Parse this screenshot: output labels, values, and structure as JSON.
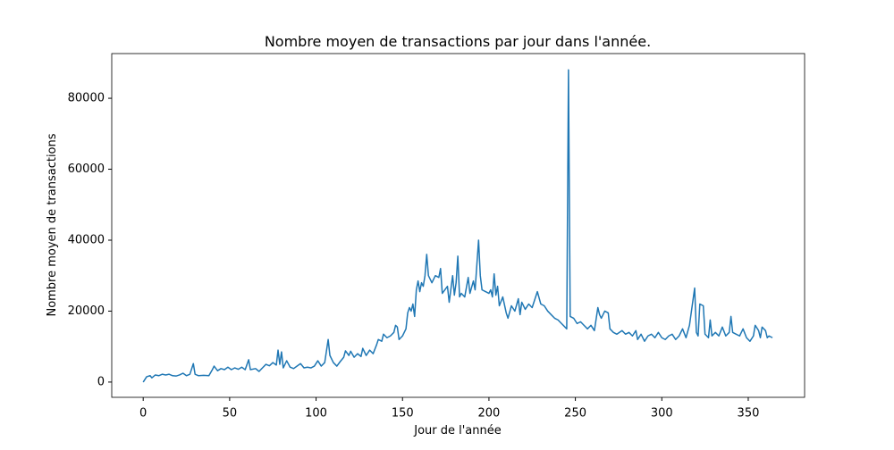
{
  "chart_data": {
    "type": "line",
    "title": "Nombre moyen de transactions par jour dans l'année.",
    "xlabel": "Jour de l'année",
    "ylabel": "Nombre moyen de transactions",
    "color": "#1f77b4",
    "xlim": [
      -18.2,
      382.6
    ],
    "ylim": [
      -4300,
      92600
    ],
    "xticks": [
      0,
      50,
      100,
      150,
      200,
      250,
      300,
      350
    ],
    "yticks": [
      0,
      20000,
      40000,
      60000,
      80000
    ],
    "x": [
      0,
      2,
      4,
      5,
      7,
      9,
      11,
      13,
      15,
      17,
      19,
      21,
      23,
      25,
      27,
      29,
      30,
      32,
      35,
      38,
      40,
      41,
      43,
      45,
      47,
      49,
      51,
      53,
      55,
      57,
      59,
      61,
      62,
      65,
      67,
      69,
      71,
      73,
      75,
      77,
      78,
      79,
      80,
      81,
      83,
      85,
      87,
      89,
      91,
      93,
      95,
      97,
      99,
      101,
      103,
      105,
      107,
      108,
      110,
      112,
      114,
      116,
      117,
      119,
      120,
      122,
      124,
      126,
      127,
      129,
      131,
      133,
      135,
      136,
      138,
      139,
      141,
      143,
      145,
      146,
      147,
      148,
      150,
      152,
      153,
      154,
      155,
      156,
      157,
      158,
      159,
      160,
      161,
      162,
      163,
      164,
      165,
      167,
      169,
      171,
      172,
      173,
      176,
      177,
      179,
      180,
      181,
      182,
      183,
      184,
      186,
      188,
      189,
      191,
      192,
      194,
      195,
      196,
      198,
      200,
      201,
      202,
      203,
      204,
      205,
      206,
      208,
      210,
      211,
      213,
      215,
      217,
      218,
      219,
      221,
      223,
      225,
      228,
      230,
      232,
      234,
      236,
      238,
      240,
      242,
      245,
      246,
      247,
      249,
      251,
      253,
      255,
      257,
      259,
      261,
      263,
      264,
      265,
      267,
      269,
      270,
      272,
      274,
      277,
      279,
      281,
      283,
      285,
      286,
      288,
      290,
      292,
      294,
      296,
      298,
      300,
      302,
      304,
      306,
      308,
      310,
      312,
      314,
      316,
      318,
      319,
      320,
      321,
      322,
      324,
      325,
      327,
      328,
      329,
      331,
      333,
      335,
      337,
      339,
      340,
      341,
      343,
      345,
      347,
      349,
      351,
      353,
      354,
      356,
      357,
      358,
      360,
      361,
      362,
      364
    ],
    "values": [
      0,
      1500,
      1800,
      1200,
      2000,
      1800,
      2200,
      2000,
      2200,
      1800,
      1700,
      2000,
      2500,
      1800,
      2200,
      5200,
      2200,
      1800,
      1900,
      1800,
      3500,
      4500,
      3200,
      3800,
      3500,
      4200,
      3500,
      4000,
      3600,
      4200,
      3500,
      6300,
      3500,
      3800,
      3000,
      4000,
      5000,
      4600,
      5500,
      4800,
      9000,
      5000,
      8500,
      4000,
      6000,
      4200,
      3800,
      4500,
      5200,
      4000,
      4200,
      4000,
      4500,
      6000,
      4500,
      5500,
      12000,
      7500,
      5500,
      4500,
      5800,
      7000,
      8800,
      7500,
      8700,
      7000,
      8000,
      7200,
      9500,
      7500,
      9000,
      8000,
      10500,
      12000,
      11500,
      13500,
      12500,
      13000,
      14000,
      16000,
      15500,
      12000,
      13000,
      15000,
      19500,
      21000,
      20000,
      22000,
      18500,
      26000,
      28500,
      25500,
      28000,
      27000,
      30000,
      36000,
      30000,
      28000,
      30000,
      29500,
      32000,
      25000,
      27000,
      22500,
      30000,
      24500,
      28000,
      35500,
      24000,
      25000,
      24000,
      29500,
      25000,
      28500,
      26000,
      40000,
      30000,
      26000,
      25500,
      25000,
      26000,
      24000,
      30500,
      24500,
      27000,
      21500,
      24000,
      19500,
      18000,
      21500,
      20000,
      23500,
      19000,
      22500,
      20500,
      22000,
      21000,
      25500,
      22000,
      21500,
      20000,
      19000,
      18000,
      17500,
      16500,
      15000,
      88000,
      18500,
      18000,
      16500,
      17000,
      16000,
      15000,
      16000,
      14500,
      21000,
      19000,
      18000,
      20000,
      19500,
      15000,
      14000,
      13500,
      14500,
      13500,
      14000,
      13000,
      14500,
      12000,
      13500,
      11500,
      13000,
      13500,
      12500,
      14000,
      12500,
      12000,
      13000,
      13500,
      12000,
      13000,
      15000,
      12500,
      16000,
      23000,
      26500,
      14000,
      13000,
      22000,
      21500,
      13500,
      12500,
      17500,
      13000,
      14000,
      13000,
      15500,
      13000,
      14000,
      18500,
      14000,
      13500,
      13000,
      15000,
      12500,
      11500,
      13000,
      16000,
      14500,
      12500,
      15500,
      14500,
      12500,
      13000,
      12500
    ]
  }
}
